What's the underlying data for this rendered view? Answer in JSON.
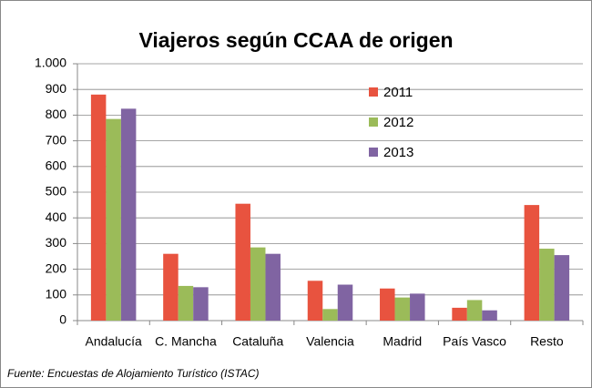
{
  "chart_data": {
    "type": "bar",
    "title": "Viajeros según CCAA de origen",
    "categories": [
      "Andalucía",
      "C. Mancha",
      "Cataluña",
      "Valencia",
      "Madrid",
      "País Vasco",
      "Resto"
    ],
    "series": [
      {
        "name": "2011",
        "color": "#e8533f",
        "values": [
          880,
          260,
          455,
          155,
          125,
          50,
          450
        ]
      },
      {
        "name": "2012",
        "color": "#9bbb59",
        "values": [
          785,
          135,
          285,
          45,
          90,
          80,
          280
        ]
      },
      {
        "name": "2013",
        "color": "#8064a2",
        "values": [
          825,
          130,
          260,
          140,
          105,
          40,
          255
        ]
      }
    ],
    "ylim": [
      0,
      1000
    ],
    "yticks": [
      0,
      100,
      200,
      300,
      400,
      500,
      600,
      700,
      800,
      900,
      {
        "value": 1000,
        "label": "1.000"
      }
    ],
    "grid": true,
    "legend": "top-right",
    "source": "Fuente: Encuestas de Alojamiento Turístico (ISTAC)"
  }
}
